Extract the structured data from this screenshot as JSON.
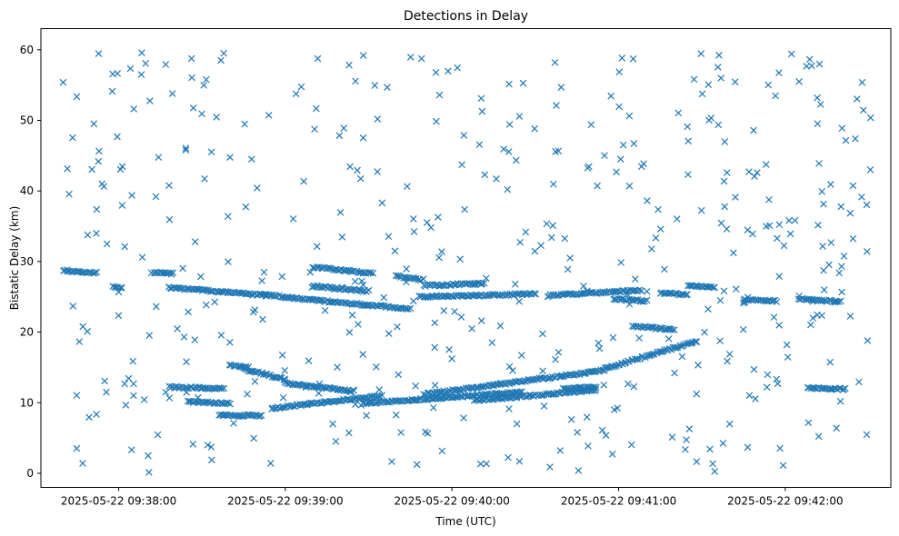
{
  "chart_data": {
    "type": "scatter",
    "title": "Detections in Delay",
    "xlabel": "Time (UTC)",
    "ylabel": "Bistatic Delay (km)",
    "grid": false,
    "marker": "x",
    "color": "#1f77b4",
    "x_start": "2025-05-22T09:37:40Z",
    "x_end": "2025-05-22T09:42:31Z",
    "xlim": [
      "2025-05-22T09:37:32Z",
      "2025-05-22T09:42:38Z"
    ],
    "ylim": [
      -2,
      63
    ],
    "x_ticks": [
      {
        "t": "2025-05-22T09:38:00Z",
        "label": "2025-05-22 09:38:00"
      },
      {
        "t": "2025-05-22T09:39:00Z",
        "label": "2025-05-22 09:39:00"
      },
      {
        "t": "2025-05-22T09:40:00Z",
        "label": "2025-05-22 09:40:00"
      },
      {
        "t": "2025-05-22T09:41:00Z",
        "label": "2025-05-22 09:41:00"
      },
      {
        "t": "2025-05-22T09:42:00Z",
        "label": "2025-05-22 09:42:00"
      }
    ],
    "y_ticks": [
      0,
      10,
      20,
      30,
      40,
      50,
      60
    ],
    "tracks": [
      {
        "t_start": "2025-05-22T09:37:40Z",
        "t_end": "2025-05-22T09:37:52Z",
        "y_start": 28.7,
        "y_end": 28.4
      },
      {
        "t_start": "2025-05-22T09:38:18Z",
        "t_end": "2025-05-22T09:39:00Z",
        "y_start": 26.3,
        "y_end": 25.0
      },
      {
        "t_start": "2025-05-22T09:39:00Z",
        "t_end": "2025-05-22T09:39:45Z",
        "y_start": 24.9,
        "y_end": 23.3
      },
      {
        "t_start": "2025-05-22T09:39:10Z",
        "t_end": "2025-05-22T09:39:30Z",
        "y_start": 26.5,
        "y_end": 25.8
      },
      {
        "t_start": "2025-05-22T09:39:10Z",
        "t_end": "2025-05-22T09:39:32Z",
        "y_start": 29.2,
        "y_end": 28.3
      },
      {
        "t_start": "2025-05-22T09:39:40Z",
        "t_end": "2025-05-22T09:39:50Z",
        "y_start": 27.9,
        "y_end": 27.4
      },
      {
        "t_start": "2025-05-22T09:39:48Z",
        "t_end": "2025-05-22T09:40:30Z",
        "y_start": 25.0,
        "y_end": 25.4
      },
      {
        "t_start": "2025-05-22T09:39:50Z",
        "t_end": "2025-05-22T09:40:12Z",
        "y_start": 26.6,
        "y_end": 26.9
      },
      {
        "t_start": "2025-05-22T09:40:35Z",
        "t_end": "2025-05-22T09:41:08Z",
        "y_start": 25.2,
        "y_end": 25.9
      },
      {
        "t_start": "2025-05-22T09:40:58Z",
        "t_end": "2025-05-22T09:41:10Z",
        "y_start": 24.7,
        "y_end": 24.4
      },
      {
        "t_start": "2025-05-22T09:41:15Z",
        "t_end": "2025-05-22T09:41:25Z",
        "y_start": 25.5,
        "y_end": 25.3
      },
      {
        "t_start": "2025-05-22T09:41:25Z",
        "t_end": "2025-05-22T09:41:35Z",
        "y_start": 26.6,
        "y_end": 26.3
      },
      {
        "t_start": "2025-05-22T09:41:45Z",
        "t_end": "2025-05-22T09:41:57Z",
        "y_start": 24.6,
        "y_end": 24.4
      },
      {
        "t_start": "2025-05-22T09:42:05Z",
        "t_end": "2025-05-22T09:42:20Z",
        "y_start": 24.7,
        "y_end": 24.3
      },
      {
        "t_start": "2025-05-22T09:37:58Z",
        "t_end": "2025-05-22T09:38:01Z",
        "y_start": 26.4,
        "y_end": 26.2
      },
      {
        "t_start": "2025-05-22T09:38:12Z",
        "t_end": "2025-05-22T09:38:20Z",
        "y_start": 28.4,
        "y_end": 28.3
      },
      {
        "t_start": "2025-05-22T09:38:18Z",
        "t_end": "2025-05-22T09:38:38Z",
        "y_start": 12.2,
        "y_end": 12.0
      },
      {
        "t_start": "2025-05-22T09:38:25Z",
        "t_end": "2025-05-22T09:38:40Z",
        "y_start": 10.1,
        "y_end": 9.9
      },
      {
        "t_start": "2025-05-22T09:38:40Z",
        "t_end": "2025-05-22T09:38:47Z",
        "y_start": 15.3,
        "y_end": 15.0
      },
      {
        "t_start": "2025-05-22T09:38:45Z",
        "t_end": "2025-05-22T09:39:00Z",
        "y_start": 14.8,
        "y_end": 13.3
      },
      {
        "t_start": "2025-05-22T09:38:36Z",
        "t_end": "2025-05-22T09:38:52Z",
        "y_start": 8.2,
        "y_end": 8.2
      },
      {
        "t_start": "2025-05-22T09:38:55Z",
        "t_end": "2025-05-22T09:39:35Z",
        "y_start": 9.2,
        "y_end": 11.0
      },
      {
        "t_start": "2025-05-22T09:39:00Z",
        "t_end": "2025-05-22T09:39:25Z",
        "y_start": 12.8,
        "y_end": 11.6
      },
      {
        "t_start": "2025-05-22T09:39:28Z",
        "t_end": "2025-05-22T09:40:25Z",
        "y_start": 9.9,
        "y_end": 11.5
      },
      {
        "t_start": "2025-05-22T09:39:50Z",
        "t_end": "2025-05-22T09:40:55Z",
        "y_start": 11.2,
        "y_end": 14.6
      },
      {
        "t_start": "2025-05-22T09:40:55Z",
        "t_end": "2025-05-22T09:41:28Z",
        "y_start": 14.8,
        "y_end": 18.7
      },
      {
        "t_start": "2025-05-22T09:40:08Z",
        "t_end": "2025-05-22T09:40:52Z",
        "y_start": 10.3,
        "y_end": 11.8
      },
      {
        "t_start": "2025-05-22T09:40:40Z",
        "t_end": "2025-05-22T09:40:52Z",
        "y_start": 12.0,
        "y_end": 12.2
      },
      {
        "t_start": "2025-05-22T09:41:05Z",
        "t_end": "2025-05-22T09:41:20Z",
        "y_start": 20.8,
        "y_end": 20.4
      },
      {
        "t_start": "2025-05-22T09:42:08Z",
        "t_end": "2025-05-22T09:42:22Z",
        "y_start": 12.1,
        "y_end": 11.9
      }
    ],
    "noise_detection_count": 460,
    "noise_y_range": [
      0,
      60
    ]
  }
}
